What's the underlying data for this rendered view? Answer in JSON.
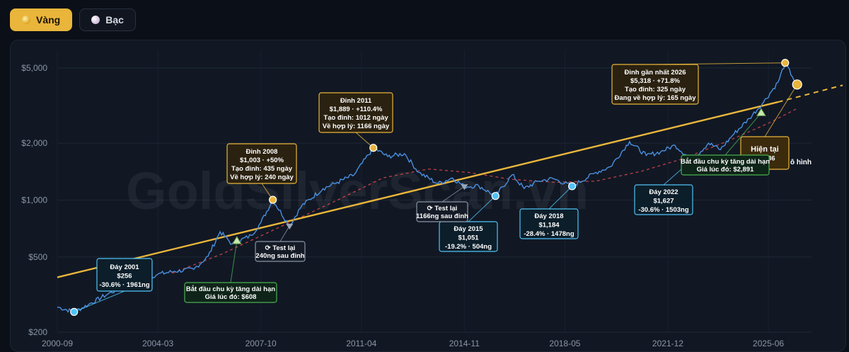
{
  "tabs": [
    {
      "label": "Vàng",
      "icon": "gold-coin-icon",
      "active": true
    },
    {
      "label": "Bạc",
      "icon": "silver-coin-icon",
      "active": false
    }
  ],
  "watermark": "GoldSilverScan.vn",
  "colors": {
    "price": "#4a8fe0",
    "trend": "#e9b53b",
    "ma": "#e0474c",
    "peak": "#e9b53b",
    "trough": "#4fc3f7",
    "start": "#4caf50"
  },
  "chart_data": {
    "type": "line",
    "x_range": [
      "2000-09",
      "2026-12"
    ],
    "y_scale": "log",
    "ylim": [
      200,
      6200
    ],
    "xticks": [
      "2000-09",
      "2004-03",
      "2007-10",
      "2011-04",
      "2014-11",
      "2018-05",
      "2021-12",
      "2025-06"
    ],
    "yticks": [
      {
        "value": 200,
        "label": "$200"
      },
      {
        "value": 500,
        "label": "$500"
      },
      {
        "value": 1000,
        "label": "$1,000"
      },
      {
        "value": 2000,
        "label": "$2,000"
      },
      {
        "value": 5000,
        "label": "$5,000"
      }
    ],
    "series": [
      {
        "kind": "price",
        "points": [
          [
            "2000-09",
            272
          ],
          [
            "2001-04",
            256
          ],
          [
            "2001-10",
            280
          ],
          [
            "2002-06",
            318
          ],
          [
            "2003-02",
            355
          ],
          [
            "2003-09",
            380
          ],
          [
            "2004-03",
            405
          ],
          [
            "2004-10",
            420
          ],
          [
            "2005-06",
            430
          ],
          [
            "2005-12",
            505
          ],
          [
            "2006-05",
            680
          ],
          [
            "2006-10",
            585
          ],
          [
            "2007-06",
            650
          ],
          [
            "2007-10",
            760
          ],
          [
            "2008-03",
            1003
          ],
          [
            "2008-10",
            730
          ],
          [
            "2009-03",
            930
          ],
          [
            "2009-12",
            1150
          ],
          [
            "2010-06",
            1240
          ],
          [
            "2011-01",
            1360
          ],
          [
            "2011-09",
            1889
          ],
          [
            "2012-03",
            1700
          ],
          [
            "2012-10",
            1760
          ],
          [
            "2013-04",
            1400
          ],
          [
            "2013-12",
            1220
          ],
          [
            "2014-06",
            1310
          ],
          [
            "2014-11",
            1180
          ],
          [
            "2015-05",
            1190
          ],
          [
            "2015-12",
            1051
          ],
          [
            "2016-07",
            1360
          ],
          [
            "2016-12",
            1150
          ],
          [
            "2017-06",
            1260
          ],
          [
            "2017-12",
            1300
          ],
          [
            "2018-08",
            1184
          ],
          [
            "2019-06",
            1400
          ],
          [
            "2019-12",
            1500
          ],
          [
            "2020-08",
            2040
          ],
          [
            "2021-03",
            1720
          ],
          [
            "2021-09",
            1800
          ],
          [
            "2022-03",
            1950
          ],
          [
            "2022-10",
            1627
          ],
          [
            "2023-05",
            2000
          ],
          [
            "2023-10",
            1850
          ],
          [
            "2024-03",
            2200
          ],
          [
            "2024-10",
            2700
          ],
          [
            "2025-04",
            3300
          ],
          [
            "2025-10",
            4200
          ],
          [
            "2026-01",
            5318
          ],
          [
            "2026-04",
            4500
          ],
          [
            "2026-06",
            4086
          ]
        ]
      },
      {
        "kind": "trend",
        "points": [
          [
            "2000-09",
            390
          ],
          [
            "2025-10",
            3300
          ]
        ],
        "projection": [
          [
            "2025-10",
            3300
          ],
          [
            "2028-01",
            4050
          ]
        ]
      },
      {
        "kind": "moving-average",
        "points": [
          [
            "2004-09",
            410
          ],
          [
            "2006-06",
            520
          ],
          [
            "2008-06",
            720
          ],
          [
            "2010-06",
            1000
          ],
          [
            "2012-01",
            1310
          ],
          [
            "2013-08",
            1460
          ],
          [
            "2015-01",
            1400
          ],
          [
            "2016-06",
            1290
          ],
          [
            "2018-01",
            1240
          ],
          [
            "2019-06",
            1260
          ],
          [
            "2021-01",
            1420
          ],
          [
            "2022-06",
            1650
          ],
          [
            "2024-01",
            2050
          ],
          [
            "2025-06",
            2550
          ],
          [
            "2026-06",
            3050
          ]
        ]
      }
    ],
    "markers": [
      {
        "kind": "trough",
        "date": "2001-04",
        "value": 256
      },
      {
        "kind": "peak",
        "date": "2008-03",
        "value": 1003
      },
      {
        "kind": "peak",
        "date": "2011-09",
        "value": 1889
      },
      {
        "kind": "trough",
        "date": "2015-12",
        "value": 1051
      },
      {
        "kind": "trough",
        "date": "2018-08",
        "value": 1184
      },
      {
        "kind": "trough",
        "date": "2022-10",
        "value": 1627
      },
      {
        "kind": "peak",
        "date": "2026-01",
        "value": 5318
      },
      {
        "kind": "current",
        "date": "2026-06",
        "value": 4086
      },
      {
        "kind": "start",
        "date": "2006-12",
        "value": 608
      },
      {
        "kind": "start",
        "date": "2025-03",
        "value": 2891
      },
      {
        "kind": "retest",
        "date": "2008-10",
        "value": 730
      },
      {
        "kind": "retest",
        "date": "2014-11",
        "value": 1180
      }
    ],
    "annotations": [
      {
        "kind": "trough",
        "lines": [
          "Đáy 2001",
          "$256",
          "-30.6% · 1961ng"
        ]
      },
      {
        "kind": "peak",
        "lines": [
          "Đỉnh 2008",
          "$1,003 · +50%",
          "Tạo đỉnh: 435 ngày",
          "Về hợp lý: 240 ngày"
        ]
      },
      {
        "kind": "peak",
        "lines": [
          "Đỉnh 2011",
          "$1,889 · +110.4%",
          "Tạo đỉnh: 1012 ngày",
          "Về hợp lý: 1166 ngày"
        ]
      },
      {
        "kind": "trough",
        "lines": [
          "Đáy 2015",
          "$1,051",
          "-19.2% · 504ng"
        ]
      },
      {
        "kind": "trough",
        "lines": [
          "Đáy 2018",
          "$1,184",
          "-28.4% · 1478ng"
        ]
      },
      {
        "kind": "trough",
        "lines": [
          "Đáy 2022",
          "$1,627",
          "-30.6% · 1503ng"
        ]
      },
      {
        "kind": "peak",
        "lines": [
          "Đỉnh gần nhất 2026",
          "$5,318 · +71.8%",
          "Tạo đỉnh: 325 ngày",
          "Đang về hợp lý: 165 ngày"
        ]
      },
      {
        "kind": "current",
        "lines": [
          "Hiện tại",
          "$4,086"
        ]
      },
      {
        "kind": "start",
        "lines": [
          "Bắt đầu chu kỳ tăng dài hạn",
          "Giá lúc đó: $608"
        ]
      },
      {
        "kind": "start",
        "lines": [
          "Bắt đầu chu kỳ tăng dài hạn",
          "Giá lúc đó: $2,891"
        ]
      },
      {
        "kind": "retest",
        "lines": [
          "⟳ Test lại",
          "240ng sau đỉnh"
        ]
      },
      {
        "kind": "retest",
        "lines": [
          "⟳ Test lại",
          "1166ng sau đỉnh"
        ]
      }
    ],
    "clipped_text": "ô hình"
  }
}
